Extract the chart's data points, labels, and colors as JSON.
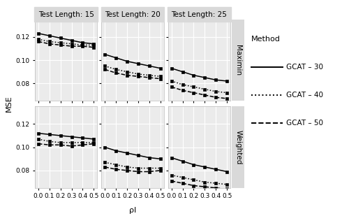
{
  "x": [
    0.0,
    0.1,
    0.2,
    0.3,
    0.4,
    0.5
  ],
  "row_labels": [
    "Maximin",
    "Weighted"
  ],
  "col_labels": [
    "Test Length: 15",
    "Test Length: 20",
    "Test Length: 25"
  ],
  "methods": [
    "GCAT - 30",
    "GCAT - 40",
    "GCAT - 50"
  ],
  "line_styles": [
    "-",
    ":",
    "--"
  ],
  "marker": "s",
  "markersize": 2.8,
  "linewidth": 1.1,
  "color": "black",
  "data": {
    "Maximin": {
      "Test Length: 15": {
        "GCAT - 30": [
          0.123,
          0.121,
          0.119,
          0.117,
          0.115,
          0.114
        ],
        "GCAT - 40": [
          0.118,
          0.116,
          0.115,
          0.114,
          0.113,
          0.113
        ],
        "GCAT - 50": [
          0.116,
          0.114,
          0.113,
          0.112,
          0.112,
          0.111
        ]
      },
      "Test Length: 20": {
        "GCAT - 30": [
          0.105,
          0.102,
          0.099,
          0.097,
          0.095,
          0.093
        ],
        "GCAT - 40": [
          0.095,
          0.092,
          0.09,
          0.088,
          0.087,
          0.086
        ],
        "GCAT - 50": [
          0.092,
          0.089,
          0.087,
          0.086,
          0.085,
          0.084
        ]
      },
      "Test Length: 25": {
        "GCAT - 30": [
          0.093,
          0.09,
          0.087,
          0.085,
          0.083,
          0.082
        ],
        "GCAT - 40": [
          0.082,
          0.079,
          0.077,
          0.075,
          0.073,
          0.072
        ],
        "GCAT - 50": [
          0.077,
          0.074,
          0.072,
          0.07,
          0.068,
          0.067
        ]
      }
    },
    "Weighted": {
      "Test Length: 15": {
        "GCAT - 30": [
          0.112,
          0.111,
          0.11,
          0.109,
          0.108,
          0.107
        ],
        "GCAT - 40": [
          0.107,
          0.105,
          0.104,
          0.104,
          0.104,
          0.104
        ],
        "GCAT - 50": [
          0.103,
          0.102,
          0.102,
          0.101,
          0.102,
          0.103
        ]
      },
      "Test Length: 20": {
        "GCAT - 30": [
          0.1,
          0.097,
          0.095,
          0.093,
          0.091,
          0.09
        ],
        "GCAT - 40": [
          0.087,
          0.085,
          0.083,
          0.082,
          0.082,
          0.082
        ],
        "GCAT - 50": [
          0.083,
          0.081,
          0.08,
          0.079,
          0.079,
          0.08
        ]
      },
      "Test Length: 25": {
        "GCAT - 30": [
          0.091,
          0.088,
          0.085,
          0.083,
          0.081,
          0.079
        ],
        "GCAT - 40": [
          0.076,
          0.074,
          0.072,
          0.07,
          0.069,
          0.068
        ],
        "GCAT - 50": [
          0.071,
          0.069,
          0.067,
          0.066,
          0.065,
          0.064
        ]
      }
    }
  },
  "ylim": [
    0.065,
    0.135
  ],
  "yticks": [
    0.08,
    0.1,
    0.12
  ],
  "xlabel": "ρI",
  "ylabel": "MSE",
  "fig_bg": "#FFFFFF",
  "panel_bg": "#EBEBEB",
  "strip_bg": "#D9D9D9",
  "grid_color": "#FFFFFF",
  "title_fontsize": 7.5,
  "label_fontsize": 8,
  "tick_fontsize": 6.5,
  "legend_fontsize": 7.5,
  "legend_title_fontsize": 8
}
